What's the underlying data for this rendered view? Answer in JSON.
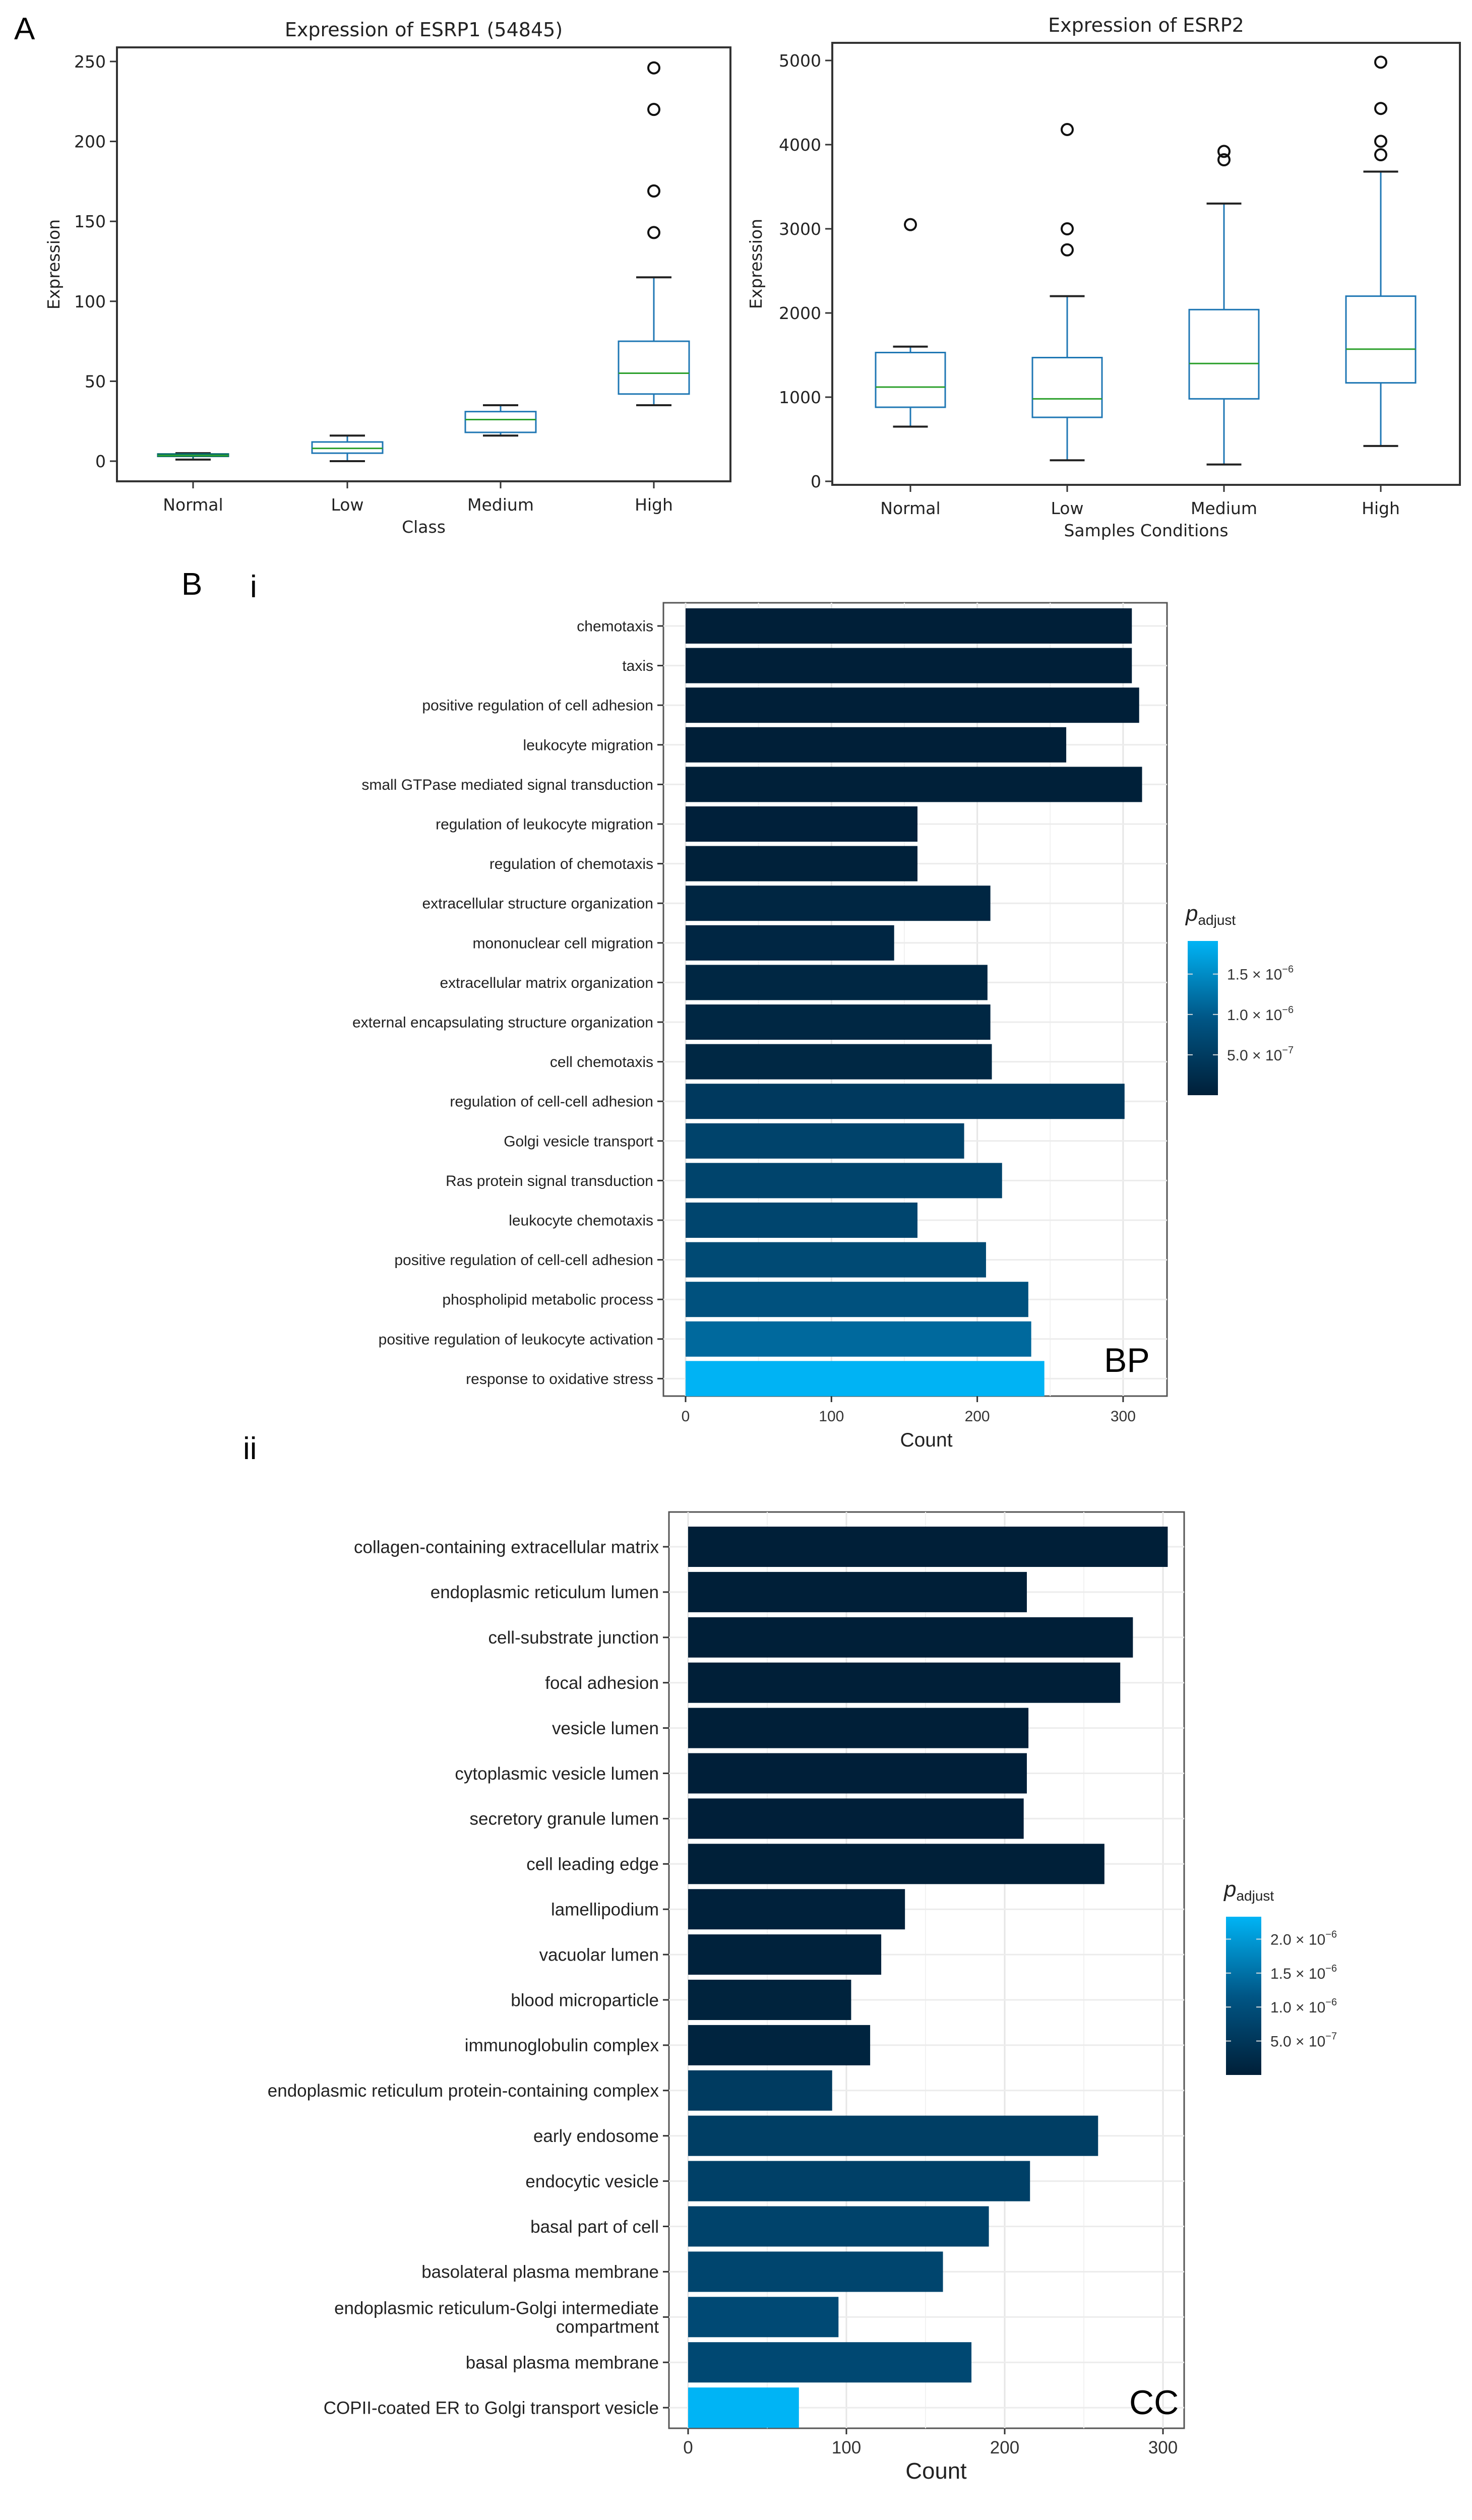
{
  "panel_labels": {
    "a": "A",
    "b": "B",
    "i": "i",
    "ii": "ii",
    "bp": "BP",
    "cc": "CC"
  },
  "chart_data": [
    {
      "type": "box",
      "title": "Expression of ESRP1 (54845)",
      "xlabel": "Class",
      "ylabel": "Expression",
      "ylim": [
        -12,
        258
      ],
      "yticks": [
        "0",
        "50",
        "100",
        "150",
        "200",
        "250"
      ],
      "categories": [
        "Normal",
        "Low",
        "Medium",
        "High"
      ],
      "boxes": [
        {
          "whislo": 1,
          "q1": 3,
          "med": 3.5,
          "q3": 4.5,
          "whishi": 5,
          "fliers": []
        },
        {
          "whislo": 0,
          "q1": 5,
          "med": 8,
          "q3": 12,
          "whishi": 16,
          "fliers": []
        },
        {
          "whislo": 16,
          "q1": 18,
          "med": 26,
          "q3": 31,
          "whishi": 35,
          "fliers": []
        },
        {
          "whislo": 35,
          "q1": 42,
          "med": 55,
          "q3": 75,
          "whishi": 115,
          "fliers": [
            143,
            169,
            220,
            246
          ]
        }
      ]
    },
    {
      "type": "box",
      "title": "Expression of ESRP2",
      "xlabel": "Samples Conditions",
      "ylabel": "Expression",
      "ylim": [
        -40,
        5200
      ],
      "yticks": [
        "0",
        "1000",
        "2000",
        "3000",
        "4000",
        "5000"
      ],
      "categories": [
        "Normal",
        "Low",
        "Medium",
        "High"
      ],
      "boxes": [
        {
          "whislo": 650,
          "q1": 880,
          "med": 1120,
          "q3": 1530,
          "whishi": 1600,
          "fliers": [
            3050
          ]
        },
        {
          "whislo": 250,
          "q1": 760,
          "med": 980,
          "q3": 1470,
          "whishi": 2200,
          "fliers": [
            2750,
            3000,
            4180
          ]
        },
        {
          "whislo": 200,
          "q1": 980,
          "med": 1400,
          "q3": 2040,
          "whishi": 3300,
          "fliers": [
            3820,
            3920
          ]
        },
        {
          "whislo": 420,
          "q1": 1170,
          "med": 1570,
          "q3": 2200,
          "whishi": 3680,
          "fliers": [
            3880,
            4040,
            4430,
            4980
          ]
        }
      ]
    },
    {
      "type": "bar",
      "orientation": "horizontal",
      "xlabel": "Count",
      "xticks": [
        "0",
        "100",
        "200",
        "300"
      ],
      "legend": {
        "title": "p",
        "title_sub": "adjust",
        "position": "right",
        "range": [
          0,
          1.91e-06
        ],
        "ticks": [
          {
            "value": 1.5e-06,
            "text": "1.5 × 10",
            "exp": "−6"
          },
          {
            "value": 1e-06,
            "text": "1.0 × 10",
            "exp": "−6"
          },
          {
            "value": 5e-07,
            "text": "5.0 × 10",
            "exp": "−7"
          }
        ]
      },
      "colors": {
        "low": "#001f38",
        "mid": "#005686",
        "high": "#00b4f5"
      },
      "categories": [
        "chemotaxis",
        "taxis",
        "positive regulation of cell adhesion",
        "leukocyte migration",
        "small GTPase mediated signal transduction",
        "regulation of leukocyte migration",
        "regulation of chemotaxis",
        "extracellular structure organization",
        "mononuclear cell migration",
        "extracellular matrix organization",
        "external encapsulating structure organization",
        "cell chemotaxis",
        "regulation of cell-cell adhesion",
        "Golgi vesicle transport",
        "Ras protein signal transduction",
        "leukocyte chemotaxis",
        "positive regulation of cell-cell adhesion",
        "phospholipid metabolic process",
        "positive regulation of leukocyte activation",
        "response to oxidative stress"
      ],
      "values": [
        306,
        306,
        311,
        261,
        313,
        159,
        159,
        209,
        143,
        207,
        209,
        210,
        301,
        191,
        217,
        159,
        206,
        235,
        237,
        246
      ],
      "padj": [
        1e-10,
        1e-10,
        2e-09,
        5e-09,
        1e-08,
        2e-08,
        3e-08,
        1.2e-07,
        1.3e-07,
        1.4e-07,
        1.4e-07,
        1.5e-07,
        4.6e-07,
        6.2e-07,
        6.4e-07,
        6.6e-07,
        7.4e-07,
        8.6e-07,
        1.15e-06,
        1.9e-06
      ]
    },
    {
      "type": "bar",
      "orientation": "horizontal",
      "xlabel": "Count",
      "xticks": [
        "0",
        "100",
        "200",
        "300"
      ],
      "legend": {
        "title": "p",
        "title_sub": "adjust",
        "position": "right",
        "range": [
          0,
          2.33e-06
        ],
        "ticks": [
          {
            "value": 2e-06,
            "text": "2.0 × 10",
            "exp": "−6"
          },
          {
            "value": 1.5e-06,
            "text": "1.5 × 10",
            "exp": "−6"
          },
          {
            "value": 1e-06,
            "text": "1.0 × 10",
            "exp": "−6"
          },
          {
            "value": 5e-07,
            "text": "5.0 × 10",
            "exp": "−7"
          }
        ]
      },
      "colors": {
        "low": "#001f38",
        "mid": "#005686",
        "high": "#00b4f5"
      },
      "categories": [
        "collagen-containing extracellular matrix",
        "endoplasmic reticulum lumen",
        "cell-substrate junction",
        "focal adhesion",
        "vesicle lumen",
        "cytoplasmic vesicle lumen",
        "secretory granule lumen",
        "cell leading edge",
        "lamellipodium",
        "vacuolar lumen",
        "blood microparticle",
        "immunoglobulin complex",
        "endoplasmic reticulum protein-containing complex",
        "early endosome",
        "endocytic vesicle",
        "basal part of cell",
        "basolateral plasma membrane",
        "endoplasmic reticulum-Golgi intermediate compartment",
        "basal plasma membrane",
        "COPII-coated ER to Golgi transport vesicle"
      ],
      "values": [
        303,
        214,
        281,
        273,
        215,
        214,
        212,
        263,
        137,
        122,
        103,
        115,
        91,
        259,
        216,
        190,
        161,
        95,
        179,
        70
      ],
      "padj": [
        1e-10,
        1e-09,
        2e-09,
        3e-09,
        5e-09,
        8e-09,
        1e-08,
        2e-08,
        4e-08,
        6e-08,
        8e-08,
        1e-07,
        6e-07,
        6.6e-07,
        7e-07,
        7.6e-07,
        8e-07,
        9e-07,
        8.6e-07,
        2.33e-06
      ]
    }
  ]
}
